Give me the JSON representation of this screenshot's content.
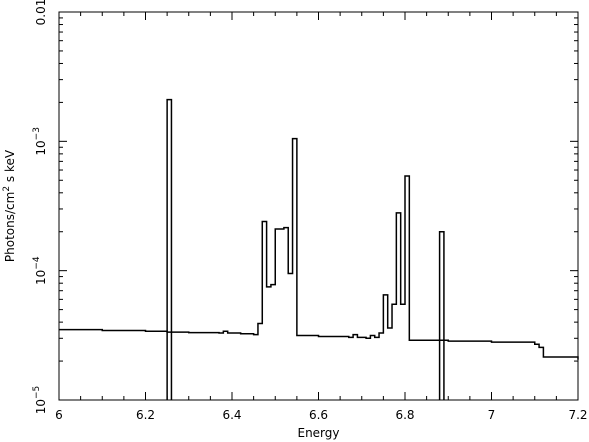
{
  "chart_data": {
    "type": "line",
    "style": "step",
    "xlabel": "Energy",
    "ylabel": "Photons/cm² s keV",
    "ylabel_parts": {
      "prefix": "Photons/cm",
      "sup": "2",
      "suffix": " s keV"
    },
    "xlim": [
      6.0,
      7.2
    ],
    "ylim": [
      1e-05,
      0.01
    ],
    "yscale": "log",
    "grid": false,
    "x_ticks": [
      {
        "value": 6.0,
        "label": "6"
      },
      {
        "value": 6.2,
        "label": "6.2"
      },
      {
        "value": 6.4,
        "label": "6.4"
      },
      {
        "value": 6.6,
        "label": "6.6"
      },
      {
        "value": 6.8,
        "label": "6.8"
      },
      {
        "value": 7.0,
        "label": "7"
      },
      {
        "value": 7.2,
        "label": "7.2"
      }
    ],
    "y_ticks": [
      {
        "value": 1e-05,
        "base": "10",
        "exp": "−5"
      },
      {
        "value": 0.0001,
        "base": "10",
        "exp": "−4"
      },
      {
        "value": 0.001,
        "base": "10",
        "exp": "−3"
      },
      {
        "value": 0.01,
        "label": "0.01"
      }
    ],
    "series": [
      {
        "points": [
          [
            6.0,
            3.5e-05
          ],
          [
            6.1,
            3.45e-05
          ],
          [
            6.2,
            3.4e-05
          ],
          [
            6.25,
            3.35e-05
          ],
          [
            6.3,
            3.32e-05
          ],
          [
            6.37,
            3.3e-05
          ],
          [
            6.38,
            3.4e-05
          ],
          [
            6.39,
            3.3e-05
          ],
          [
            6.42,
            3.25e-05
          ],
          [
            6.45,
            3.2e-05
          ],
          [
            6.46,
            3.9e-05
          ],
          [
            6.47,
            0.00024
          ],
          [
            6.48,
            7.5e-05
          ],
          [
            6.49,
            7.8e-05
          ],
          [
            6.5,
            0.00021
          ],
          [
            6.52,
            0.000215
          ],
          [
            6.53,
            9.5e-05
          ],
          [
            6.54,
            0.00105
          ],
          [
            6.55,
            3.15e-05
          ],
          [
            6.6,
            3.1e-05
          ],
          [
            6.67,
            3.05e-05
          ],
          [
            6.68,
            3.2e-05
          ],
          [
            6.69,
            3.05e-05
          ],
          [
            6.71,
            3e-05
          ],
          [
            6.72,
            3.15e-05
          ],
          [
            6.73,
            3.05e-05
          ],
          [
            6.74,
            3.3e-05
          ],
          [
            6.75,
            6.5e-05
          ],
          [
            6.76,
            3.6e-05
          ],
          [
            6.77,
            5.5e-05
          ],
          [
            6.78,
            0.00028
          ],
          [
            6.79,
            5.5e-05
          ],
          [
            6.8,
            0.00054
          ],
          [
            6.81,
            2.9e-05
          ],
          [
            6.9,
            2.85e-05
          ],
          [
            7.0,
            2.8e-05
          ],
          [
            7.1,
            2.7e-05
          ],
          [
            7.11,
            2.55e-05
          ],
          [
            7.12,
            2.15e-05
          ],
          [
            7.2,
            2.05e-05
          ]
        ]
      },
      {
        "points": [
          [
            6.25,
            1e-05
          ],
          [
            6.25,
            0.0021
          ],
          [
            6.26,
            0.0021
          ],
          [
            6.26,
            1e-05
          ]
        ]
      },
      {
        "points": [
          [
            6.88,
            1e-05
          ],
          [
            6.88,
            0.0002
          ],
          [
            6.89,
            0.0002
          ],
          [
            6.89,
            1e-05
          ]
        ]
      }
    ]
  }
}
